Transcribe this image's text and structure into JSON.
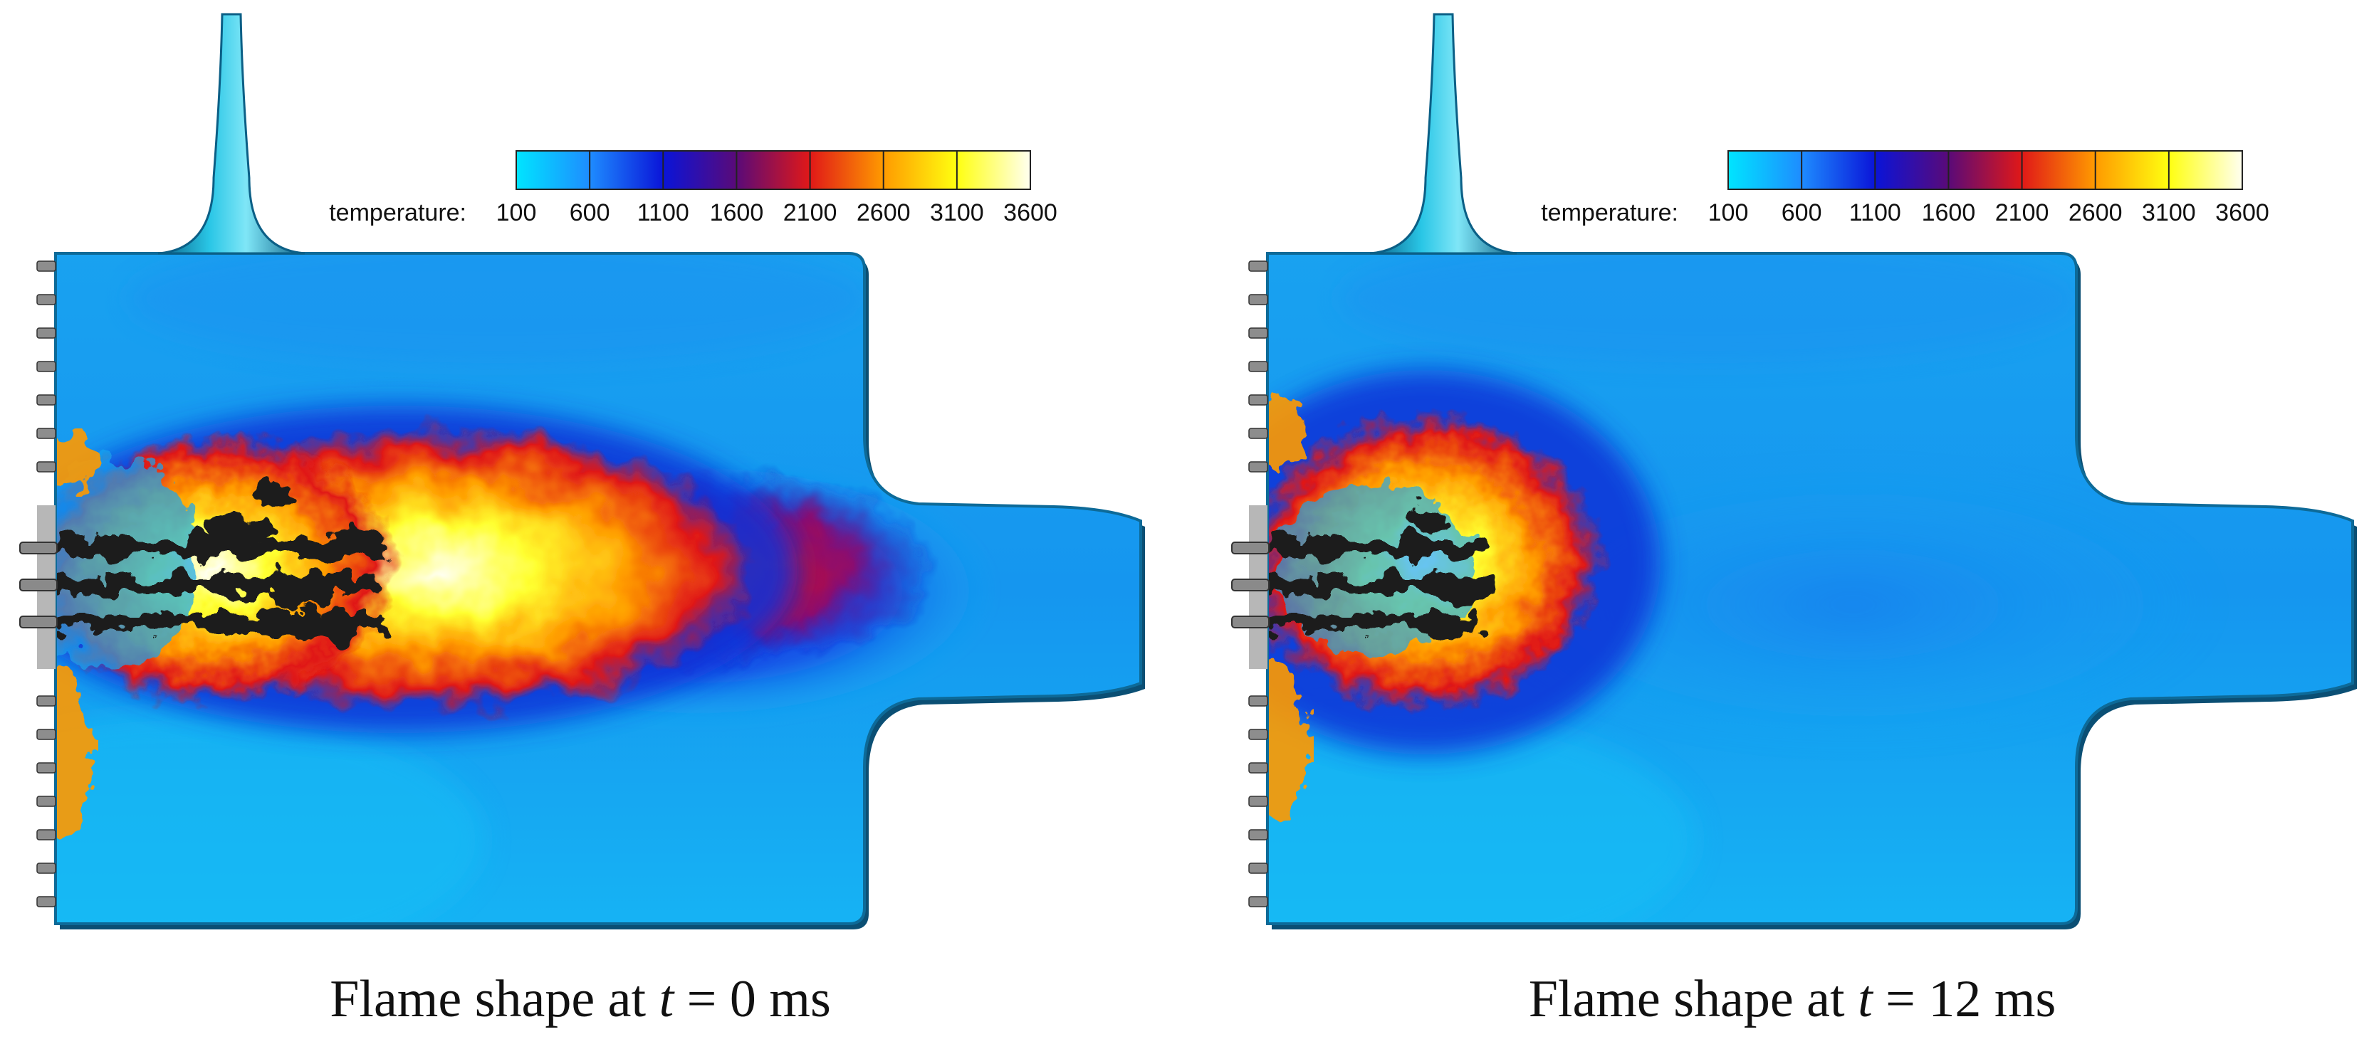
{
  "colormap": {
    "name": "temperature",
    "label": "temperature:",
    "ticks": [
      "100",
      "600",
      "1100",
      "1600",
      "2100",
      "2600",
      "3100",
      "3600"
    ],
    "stops": [
      "#00e5ff",
      "#1e8cff",
      "#0a14d8",
      "#5a0a78",
      "#e01818",
      "#ff9a00",
      "#ffff10",
      "#fffff0"
    ]
  },
  "panels": [
    {
      "id": "t0",
      "caption": {
        "prefix": "Flame shape at ",
        "var": "t",
        "rest": " = 0 ms"
      }
    },
    {
      "id": "t12",
      "caption": {
        "prefix": "Flame shape at ",
        "var": "t",
        "rest": " = 12 ms"
      }
    }
  ],
  "colors": {
    "cold_field": "#18a6f2",
    "wall_teal": "#29c6e6",
    "wall_dark": "#0b5f86",
    "soot": "#1f1f1f",
    "injector": "#8a8a8a"
  }
}
